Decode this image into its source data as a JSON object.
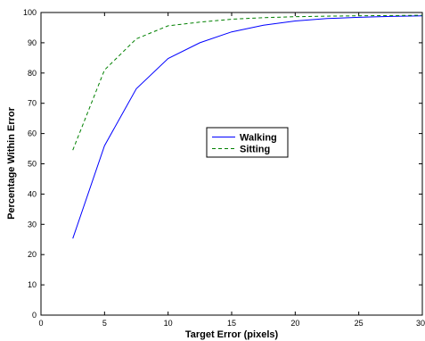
{
  "chart_data": {
    "type": "line",
    "title": "",
    "xlabel": "Target Error (pixels)",
    "ylabel": "Percentage Within Error",
    "xlim": [
      0,
      30
    ],
    "ylim": [
      0,
      100
    ],
    "xticks": [
      "0",
      "5",
      "10",
      "15",
      "20",
      "25",
      "30"
    ],
    "yticks": [
      "0",
      "10",
      "20",
      "30",
      "40",
      "50",
      "60",
      "70",
      "80",
      "90",
      "100"
    ],
    "grid": false,
    "legend_position": "center",
    "x": [
      2.5,
      5,
      7.5,
      10,
      12.5,
      15,
      17.5,
      20,
      22.5,
      25,
      27.5,
      30
    ],
    "series": [
      {
        "name": "Walking",
        "color": "#0000ff",
        "style": "solid",
        "values": [
          25.3,
          56,
          74.8,
          84.8,
          90,
          93.6,
          95.8,
          97.2,
          98,
          98.4,
          98.7,
          98.9
        ]
      },
      {
        "name": "Sitting",
        "color": "#008000",
        "style": "dashed",
        "values": [
          54.5,
          81,
          91.3,
          95.6,
          96.8,
          97.8,
          98.3,
          98.6,
          98.8,
          98.9,
          99,
          99.1
        ]
      }
    ]
  }
}
